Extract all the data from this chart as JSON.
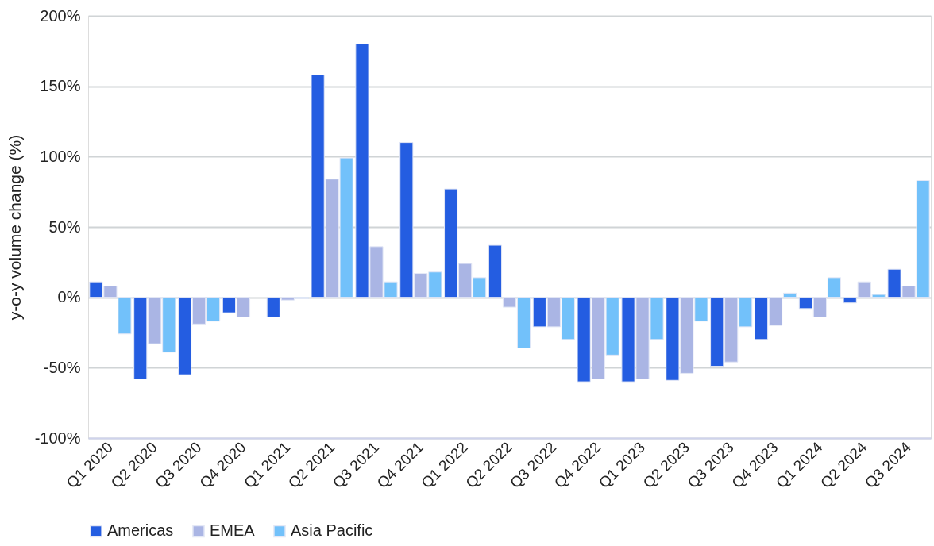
{
  "chart_data": {
    "type": "bar",
    "ylabel": "y-o-y volume change (%)",
    "categories": [
      "Q1 2020",
      "Q2 2020",
      "Q3 2020",
      "Q4 2020",
      "Q1 2021",
      "Q2 2021",
      "Q3 2021",
      "Q4 2021",
      "Q1 2022",
      "Q2 2022",
      "Q3 2022",
      "Q4 2022",
      "Q1 2023",
      "Q2 2023",
      "Q3 2023",
      "Q4 2023",
      "Q1 2024",
      "Q2 2024",
      "Q3 2024"
    ],
    "series": [
      {
        "name": "Americas",
        "color": "#245de1",
        "values": [
          11,
          -58,
          -55,
          -11,
          -14,
          158,
          180,
          110,
          77,
          37,
          -21,
          -60,
          -60,
          -59,
          -49,
          -30,
          -8,
          -4,
          20
        ]
      },
      {
        "name": "EMEA",
        "color": "#aab5e4",
        "values": [
          8,
          -33,
          -19,
          -14,
          -2,
          84,
          36,
          17,
          24,
          -7,
          -21,
          -58,
          -58,
          -54,
          -46,
          -20,
          -14,
          11,
          8
        ]
      },
      {
        "name": "Asia Pacific",
        "color": "#72c1fa",
        "values": [
          -26,
          -39,
          -17,
          null,
          -1,
          99,
          11,
          18,
          14,
          -36,
          -30,
          -41,
          -30,
          -17,
          -21,
          3,
          14,
          2,
          83
        ]
      }
    ],
    "ylim": [
      -100,
      200
    ],
    "yticks": [
      {
        "value": -100,
        "label": "-100%"
      },
      {
        "value": -50,
        "label": "-50%"
      },
      {
        "value": 0,
        "label": "0%"
      },
      {
        "value": 50,
        "label": "50%"
      },
      {
        "value": 100,
        "label": "100%"
      },
      {
        "value": 150,
        "label": "150%"
      },
      {
        "value": 200,
        "label": "200%"
      }
    ],
    "grid": "y",
    "legend": "bottom"
  }
}
